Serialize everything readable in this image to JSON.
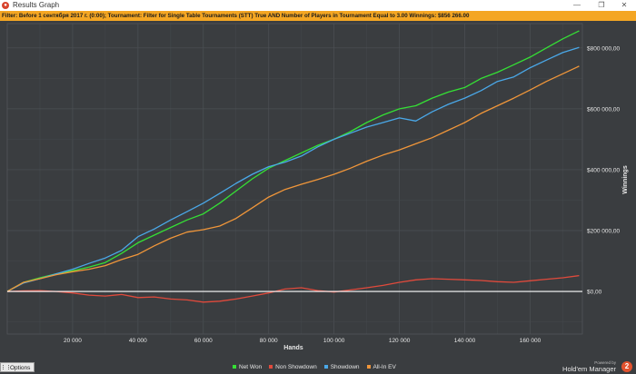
{
  "window": {
    "title": "Results Graph",
    "icon": "hm-logo-icon",
    "controls": {
      "minimize": "—",
      "maximize": "❐",
      "close": "✕"
    }
  },
  "filter_text": "Filter: Before 1 сентября 2017 г. (0:00); Tournament: Filter for Single Table Tournaments (STT) True AND Number of Players in Tournament Equal to 3.00  Winnings: $856 266.00",
  "colors": {
    "background": "#3a3d40",
    "filterbar": "#f4a623",
    "net_won": "#35e035",
    "non_showdown": "#e04a3c",
    "showdown": "#4aa8e8",
    "allin_ev": "#f0963a",
    "zero_line": "#ffffff"
  },
  "footer": {
    "options_label": "Options",
    "powered_by": "Powered by",
    "brand": "Hold'em Manager",
    "brand_logo": "2"
  },
  "chart_data": {
    "type": "line",
    "xlabel": "Hands",
    "ylabel": "Winnings",
    "xlim": [
      0,
      176000
    ],
    "ylim": [
      -140000,
      880000
    ],
    "x_ticks": [
      20000,
      40000,
      60000,
      80000,
      100000,
      120000,
      140000,
      160000
    ],
    "x_tick_labels": [
      "20 000",
      "40 000",
      "60 000",
      "80 000",
      "100 000",
      "120 000",
      "140 000",
      "160 000"
    ],
    "y_ticks": [
      0,
      200000,
      400000,
      600000,
      800000
    ],
    "y_tick_labels": [
      "$0,00",
      "$200 000,00",
      "$400 000,00",
      "$600 000,00",
      "$800 000,00"
    ],
    "grid": true,
    "legend_position": "bottom",
    "series": [
      {
        "name": "Net Won",
        "color": "#35e035",
        "x": [
          0,
          5000,
          10000,
          15000,
          20000,
          25000,
          30000,
          35000,
          40000,
          45000,
          50000,
          55000,
          60000,
          65000,
          70000,
          75000,
          80000,
          85000,
          90000,
          95000,
          100000,
          105000,
          110000,
          115000,
          120000,
          125000,
          130000,
          135000,
          140000,
          145000,
          150000,
          155000,
          160000,
          165000,
          170000,
          175000
        ],
        "values": [
          0,
          30000,
          45000,
          58000,
          68000,
          80000,
          95000,
          125000,
          160000,
          185000,
          210000,
          235000,
          255000,
          290000,
          330000,
          370000,
          405000,
          430000,
          455000,
          480000,
          500000,
          525000,
          555000,
          580000,
          600000,
          610000,
          635000,
          655000,
          670000,
          700000,
          720000,
          745000,
          770000,
          800000,
          830000,
          856000
        ]
      },
      {
        "name": "Non Showdown",
        "color": "#e04a3c",
        "x": [
          0,
          5000,
          10000,
          15000,
          20000,
          25000,
          30000,
          35000,
          40000,
          45000,
          50000,
          55000,
          60000,
          65000,
          70000,
          75000,
          80000,
          85000,
          90000,
          95000,
          100000,
          105000,
          110000,
          115000,
          120000,
          125000,
          130000,
          135000,
          140000,
          145000,
          150000,
          155000,
          160000,
          165000,
          170000,
          175000
        ],
        "values": [
          0,
          2000,
          3000,
          0,
          -5000,
          -12000,
          -15000,
          -10000,
          -20000,
          -18000,
          -25000,
          -28000,
          -35000,
          -32000,
          -25000,
          -15000,
          -5000,
          8000,
          12000,
          3000,
          -2000,
          5000,
          12000,
          20000,
          30000,
          38000,
          42000,
          40000,
          38000,
          36000,
          32000,
          30000,
          35000,
          40000,
          45000,
          52000
        ]
      },
      {
        "name": "Showdown",
        "color": "#4aa8e8",
        "x": [
          0,
          5000,
          10000,
          15000,
          20000,
          25000,
          30000,
          35000,
          40000,
          45000,
          50000,
          55000,
          60000,
          65000,
          70000,
          75000,
          80000,
          85000,
          90000,
          95000,
          100000,
          105000,
          110000,
          115000,
          120000,
          125000,
          130000,
          135000,
          140000,
          145000,
          150000,
          155000,
          160000,
          165000,
          170000,
          175000
        ],
        "values": [
          0,
          28000,
          42000,
          58000,
          73000,
          92000,
          110000,
          135000,
          180000,
          205000,
          235000,
          262000,
          290000,
          322000,
          355000,
          385000,
          410000,
          425000,
          445000,
          475000,
          500000,
          520000,
          540000,
          555000,
          570000,
          560000,
          590000,
          615000,
          635000,
          660000,
          690000,
          705000,
          735000,
          760000,
          785000,
          802000
        ]
      },
      {
        "name": "All-In EV",
        "color": "#f0963a",
        "x": [
          0,
          5000,
          10000,
          15000,
          20000,
          25000,
          30000,
          35000,
          40000,
          45000,
          50000,
          55000,
          60000,
          65000,
          70000,
          75000,
          80000,
          85000,
          90000,
          95000,
          100000,
          105000,
          110000,
          115000,
          120000,
          125000,
          130000,
          135000,
          140000,
          145000,
          150000,
          155000,
          160000,
          165000,
          170000,
          175000
        ],
        "values": [
          0,
          30000,
          42000,
          55000,
          65000,
          73000,
          85000,
          105000,
          122000,
          150000,
          175000,
          195000,
          203000,
          215000,
          240000,
          275000,
          310000,
          335000,
          352000,
          368000,
          385000,
          405000,
          428000,
          448000,
          465000,
          485000,
          505000,
          530000,
          555000,
          585000,
          610000,
          635000,
          662000,
          690000,
          715000,
          740000
        ]
      }
    ]
  }
}
